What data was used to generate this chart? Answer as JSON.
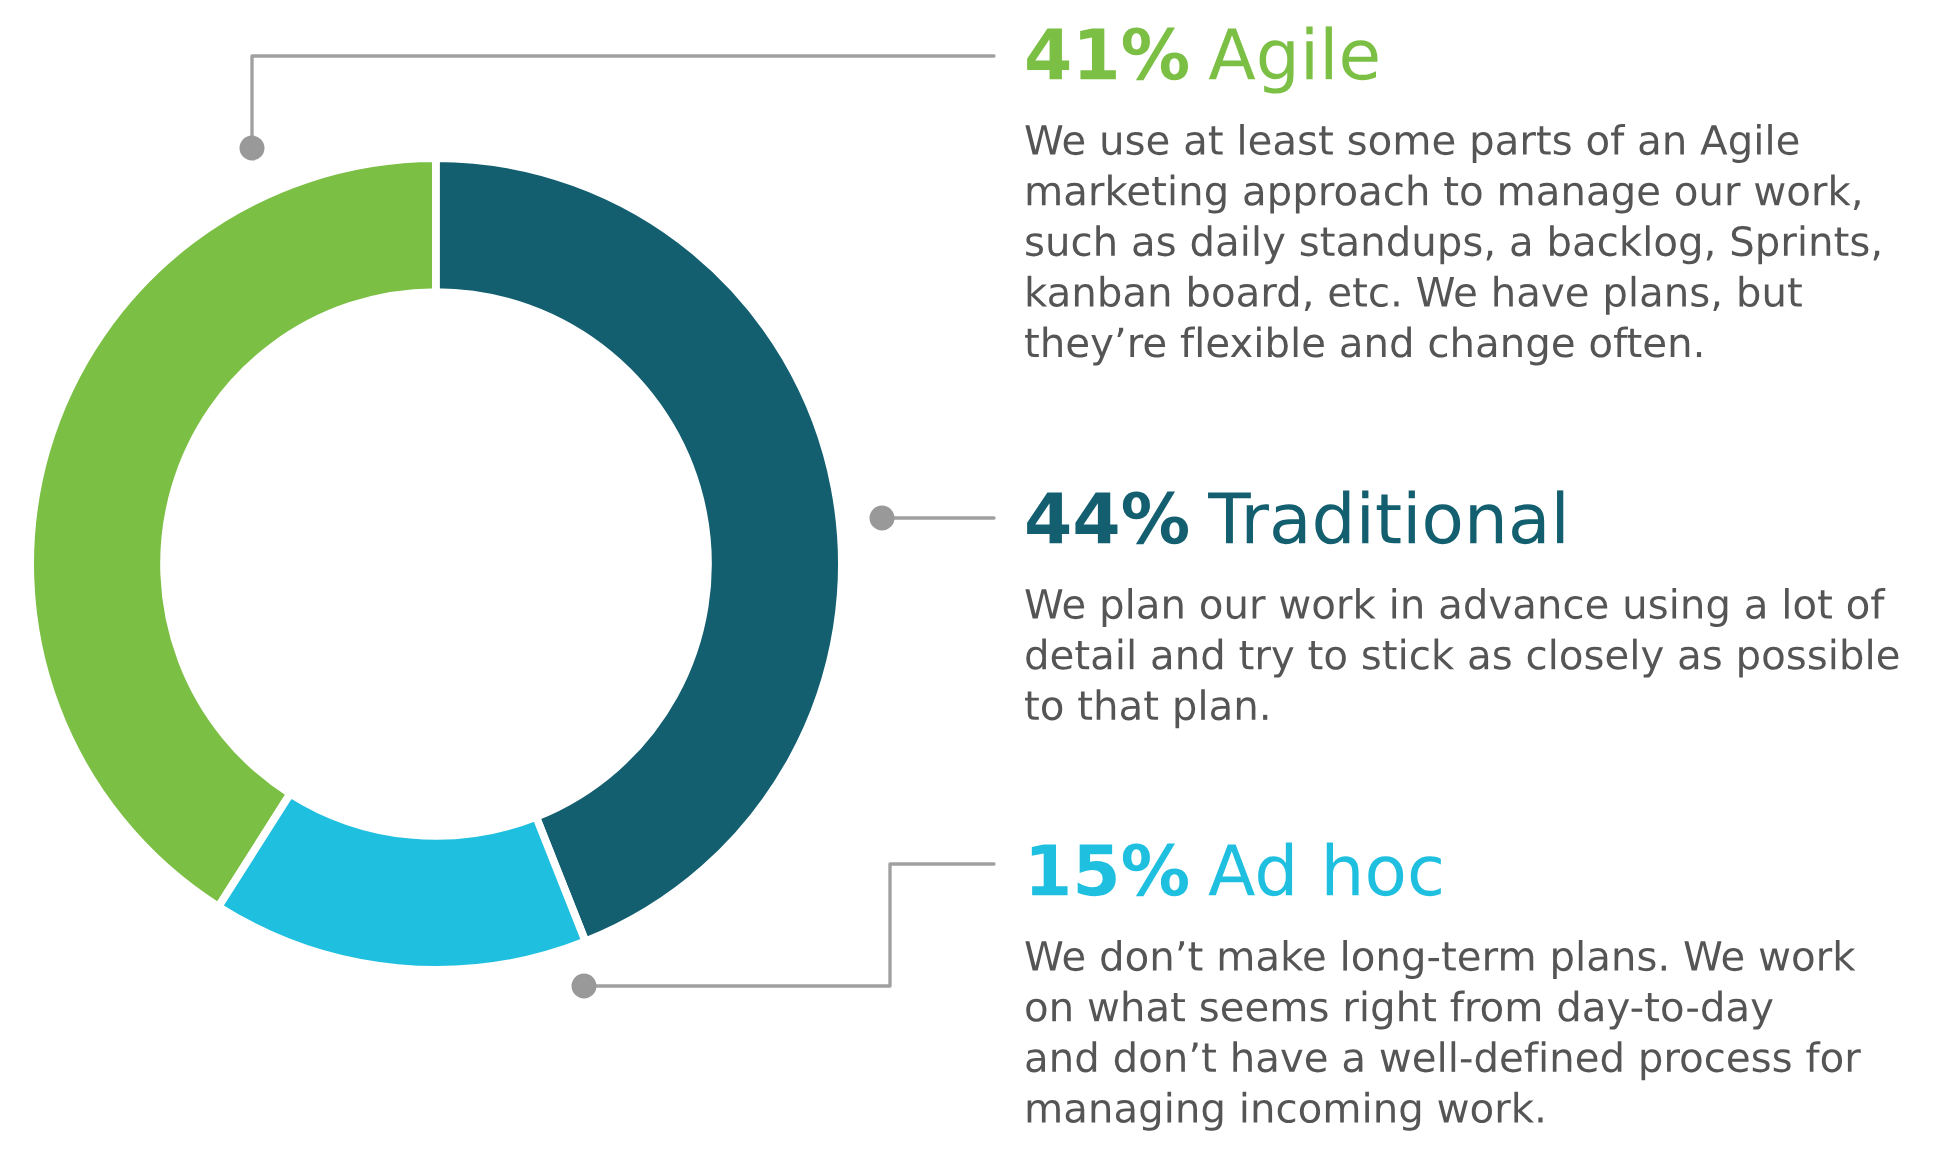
{
  "chart_data": {
    "type": "donut",
    "categories": [
      "Agile",
      "Traditional",
      "Ad hoc"
    ],
    "values": [
      41,
      44,
      15
    ],
    "value_labels": [
      "41%",
      "44%",
      "15%"
    ],
    "colors": [
      "#7bbf44",
      "#135f70",
      "#1fbfdf"
    ],
    "annotations": [
      "We use at least some parts of an Agile\nmarketing approach to manage our work,\nsuch as daily standups, a backlog, Sprints,\nkanban board, etc. We have plans, but\nthey’re flexible and change often.",
      "We plan our work in advance using a lot of\ndetail and try to stick as closely as possible\nto that plan.",
      "We don’t make long-term plans. We work\non what seems right from day-to-day\nand don’t have a well-defined process for\nmanaging incoming work."
    ]
  }
}
